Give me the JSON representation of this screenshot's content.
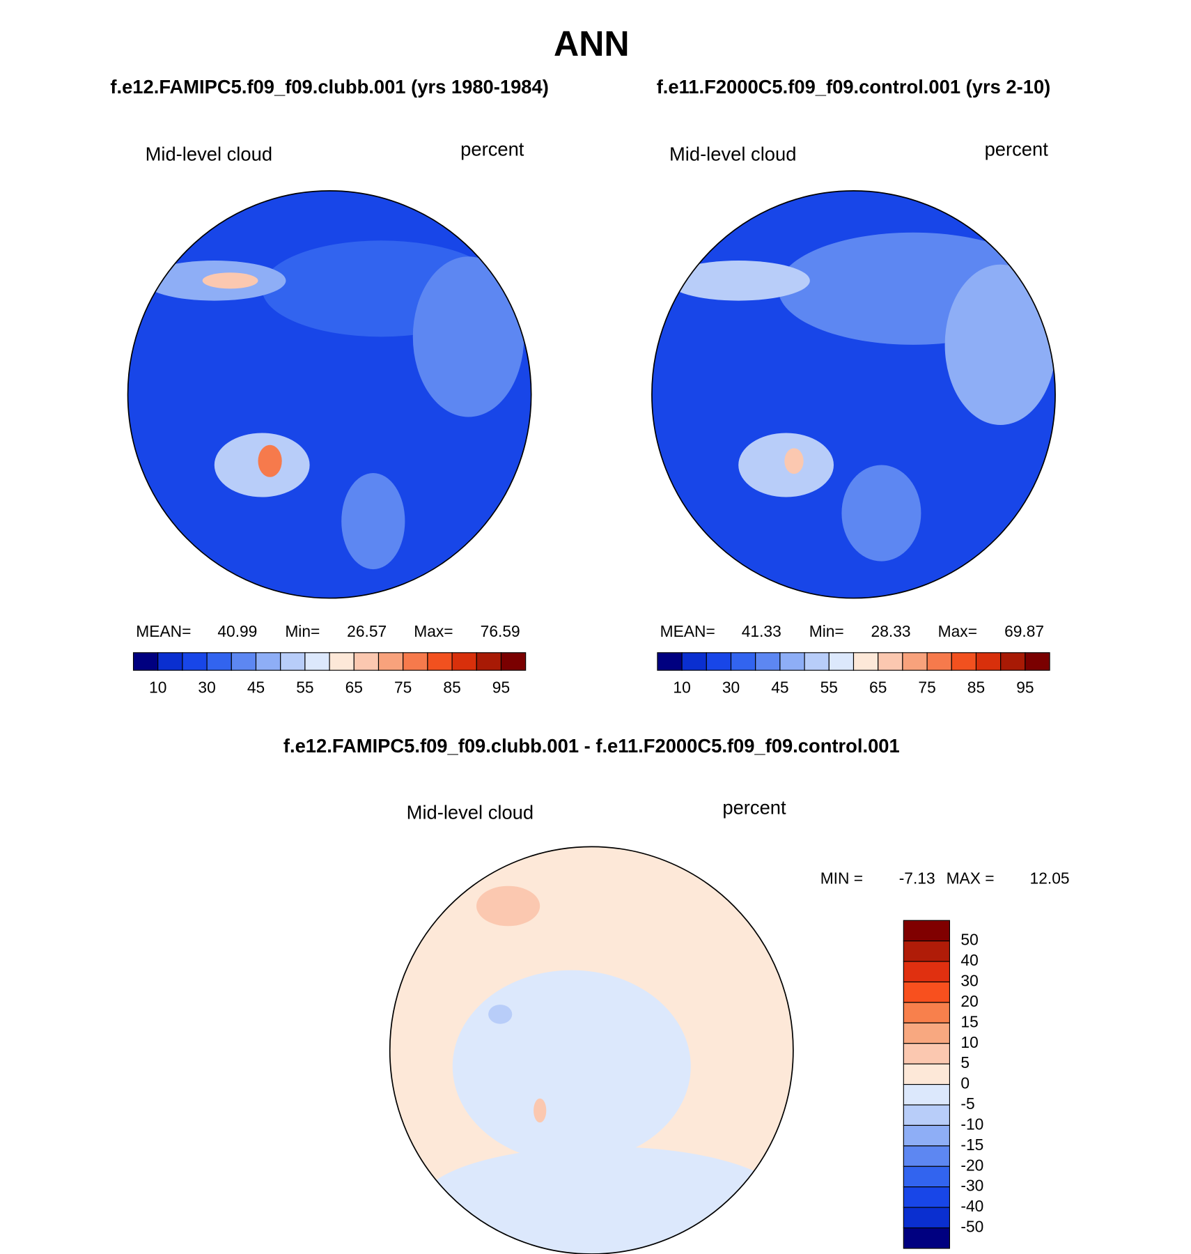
{
  "title": "ANN",
  "panels": [
    {
      "case": "f.e12.FAMIPC5.f09_f09.clubb.001 (yrs 1980-1984)",
      "variable": "Mid-level cloud",
      "units": "percent",
      "mean_label": "MEAN=",
      "mean": 40.99,
      "min_label": "Min=",
      "min": 26.57,
      "max_label": "Max=",
      "max": 76.59,
      "colorbar": {
        "ticks": [
          10,
          30,
          45,
          55,
          65,
          75,
          85,
          95
        ]
      }
    },
    {
      "case": "f.e11.F2000C5.f09_f09.control.001 (yrs 2-10)",
      "variable": "Mid-level cloud",
      "units": "percent",
      "mean_label": "MEAN=",
      "mean": 41.33,
      "min_label": "Min=",
      "min": 28.33,
      "max_label": "Max=",
      "max": 69.87,
      "colorbar": {
        "ticks": [
          10,
          30,
          45,
          55,
          65,
          75,
          85,
          95
        ]
      }
    }
  ],
  "colors": [
    "#000080",
    "#0a2fd0",
    "#1846e8",
    "#3264ef",
    "#5d87f2",
    "#8eaef6",
    "#b8cdf9",
    "#dce8fc",
    "#fde8d8",
    "#fbc8b0",
    "#f8a27c",
    "#f67a4c",
    "#f2511f",
    "#d8300b",
    "#a81a05",
    "#7a0000"
  ],
  "difference": {
    "title": "f.e12.FAMIPC5.f09_f09.clubb.001 - f.e11.F2000C5.f09_f09.control.001",
    "variable": "Mid-level cloud",
    "units": "percent",
    "min_label": "MIN =",
    "min": -7.13,
    "max_label": "MAX =",
    "max": 12.05,
    "colorbar": {
      "ticks": [
        50,
        40,
        30,
        20,
        15,
        10,
        5,
        0,
        -5,
        -10,
        -15,
        -20,
        -30,
        -40,
        -50
      ],
      "colors": [
        "#800000",
        "#b01c08",
        "#e03010",
        "#f8501e",
        "#f8804c",
        "#f8a880",
        "#fbc8b0",
        "#fde8d8",
        "#dce8fc",
        "#b8cdf9",
        "#8eaef6",
        "#5d87f2",
        "#3264ef",
        "#1846e8",
        "#0a2fd0",
        "#000080"
      ]
    }
  }
}
